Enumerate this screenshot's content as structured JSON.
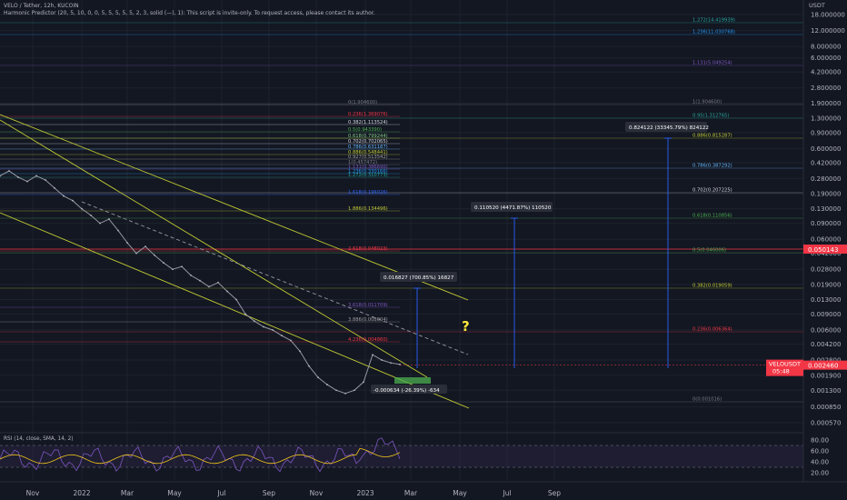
{
  "header": {
    "title": "VELO / Tether, 12h, KUCOIN",
    "indicator": "Harmonic Predictor (20, 5, 10, 0, 0, 5, 5, 5, 5, 5, 2, 3, solid (—), 1): This script is invite-only. To request access, please contact its author."
  },
  "price_axis": {
    "currency": "USDT",
    "ticks": [
      "18.000000",
      "12.000000",
      "8.000000",
      "6.000000",
      "4.200000",
      "2.800000",
      "1.900000",
      "1.300000",
      "0.900000",
      "0.600000",
      "0.420000",
      "0.280000",
      "0.190000",
      "0.130000",
      "0.090000",
      "0.060000",
      "0.042000",
      "0.028000",
      "0.019000",
      "0.013000",
      "0.009000",
      "0.006000",
      "0.004200",
      "0.002800",
      "0.001900",
      "0.001300",
      "0.000850",
      "0.000570"
    ],
    "current_price": "0.002460",
    "symbol_label": "VELOUSDT",
    "countdown": "05:48",
    "red_line_price": "0.050143"
  },
  "time_axis": [
    "Nov",
    "2022",
    "Mar",
    "May",
    "Jul",
    "Sep",
    "Nov",
    "2023",
    "Mar",
    "May",
    "Jul",
    "Sep"
  ],
  "rsi": {
    "label": "RSI (14, close, SMA, 14, 2)",
    "ticks": [
      "80.00",
      "60.00",
      "40.00",
      "20.00"
    ]
  },
  "fib_labels_left": [
    {
      "text": "0(1.904600)",
      "color": "#787b86"
    },
    {
      "text": "0.236(1.369076)",
      "color": "#f23645"
    },
    {
      "text": "0.382(1.113524)",
      "color": "#d1d4dc"
    },
    {
      "text": "0.5(0.943390)",
      "color": "#4caf50"
    },
    {
      "text": "0.618(0.799244)",
      "color": "#81c784"
    },
    {
      "text": "0.702(0.702065)",
      "color": "#d1d4dc"
    },
    {
      "text": "0.786(0.631187)",
      "color": "#64b5f6"
    },
    {
      "text": "0.886(0.548441)",
      "color": "#c0ca33"
    },
    {
      "text": "0.927(0.513542)",
      "color": "#9e9e9e"
    },
    {
      "text": "1(0.457472)",
      "color": "#787b86"
    },
    {
      "text": "1.131(0.386690)",
      "color": "#7e57c2"
    },
    {
      "text": "1.236(0.330166)",
      "color": "#2196f3"
    },
    {
      "text": "1.272(0.310773)",
      "color": "#26a69a"
    },
    {
      "text": "1.618(0.196026)",
      "color": "#2962ff"
    },
    {
      "text": "1.886(0.134496)",
      "color": "#c0ca33"
    },
    {
      "text": "2.618(0.048023)",
      "color": "#f23645"
    },
    {
      "text": "3.618(0.011709)",
      "color": "#7e57c2"
    },
    {
      "text": "3.886(0.008004)",
      "color": "#9e9e9e"
    },
    {
      "text": "4.236(0.004860)",
      "color": "#f23645"
    }
  ],
  "fib_labels_right": [
    {
      "text": "1.272(14.419939)",
      "color": "#26a69a"
    },
    {
      "text": "1.236(11.030768)",
      "color": "#2196f3"
    },
    {
      "text": "1.131(5.049254)",
      "color": "#7e57c2"
    },
    {
      "text": "1(1.904600)",
      "color": "#787b86"
    },
    {
      "text": "0.95(1.312765)",
      "color": "#26a69a"
    },
    {
      "text": "0.886(0.815287)",
      "color": "#c0ca33"
    },
    {
      "text": "0.786(0.387292)",
      "color": "#64b5f6"
    },
    {
      "text": "0.702(0.207225)",
      "color": "#d1d4dc"
    },
    {
      "text": "0.618(0.110856)",
      "color": "#4caf50"
    },
    {
      "text": "0.5(0.046006)",
      "color": "#4caf50"
    },
    {
      "text": "0.382(0.019059)",
      "color": "#c0ca33"
    },
    {
      "text": "0.236(0.006364)",
      "color": "#f23645"
    },
    {
      "text": "0(0.001016)",
      "color": "#787b86"
    }
  ],
  "measurements": [
    "0.824122 (33345.79%) 824122",
    "0.110520 (4471.87%) 110520",
    "0.016827 (700.85%) 16827",
    "-0.000634 (-26.39%) -634"
  ],
  "annotation": "?",
  "colors": {
    "up": "#26a69a",
    "down": "#f23645",
    "price_line": "#9598a1",
    "trend": "#c0ca33",
    "rsi": "#7e57c2",
    "rsi_ma": "#f0c419"
  },
  "chart_data": {
    "type": "line",
    "series": [
      {
        "values": [
          0.3,
          0.34,
          0.29,
          0.26,
          0.3,
          0.27,
          0.22,
          0.18,
          0.16,
          0.13,
          0.11,
          0.09,
          0.1,
          0.075,
          0.055,
          0.042,
          0.05,
          0.04,
          0.033,
          0.028,
          0.03,
          0.024,
          0.021,
          0.018,
          0.02,
          0.016,
          0.013,
          0.009,
          0.0075,
          0.0065,
          0.006,
          0.0052,
          0.0046,
          0.0035,
          0.0024,
          0.0018,
          0.0015,
          0.0013,
          0.0012,
          0.0013,
          0.0016,
          0.0032,
          0.0028,
          0.0026,
          0.0025
        ]
      }
    ]
  }
}
